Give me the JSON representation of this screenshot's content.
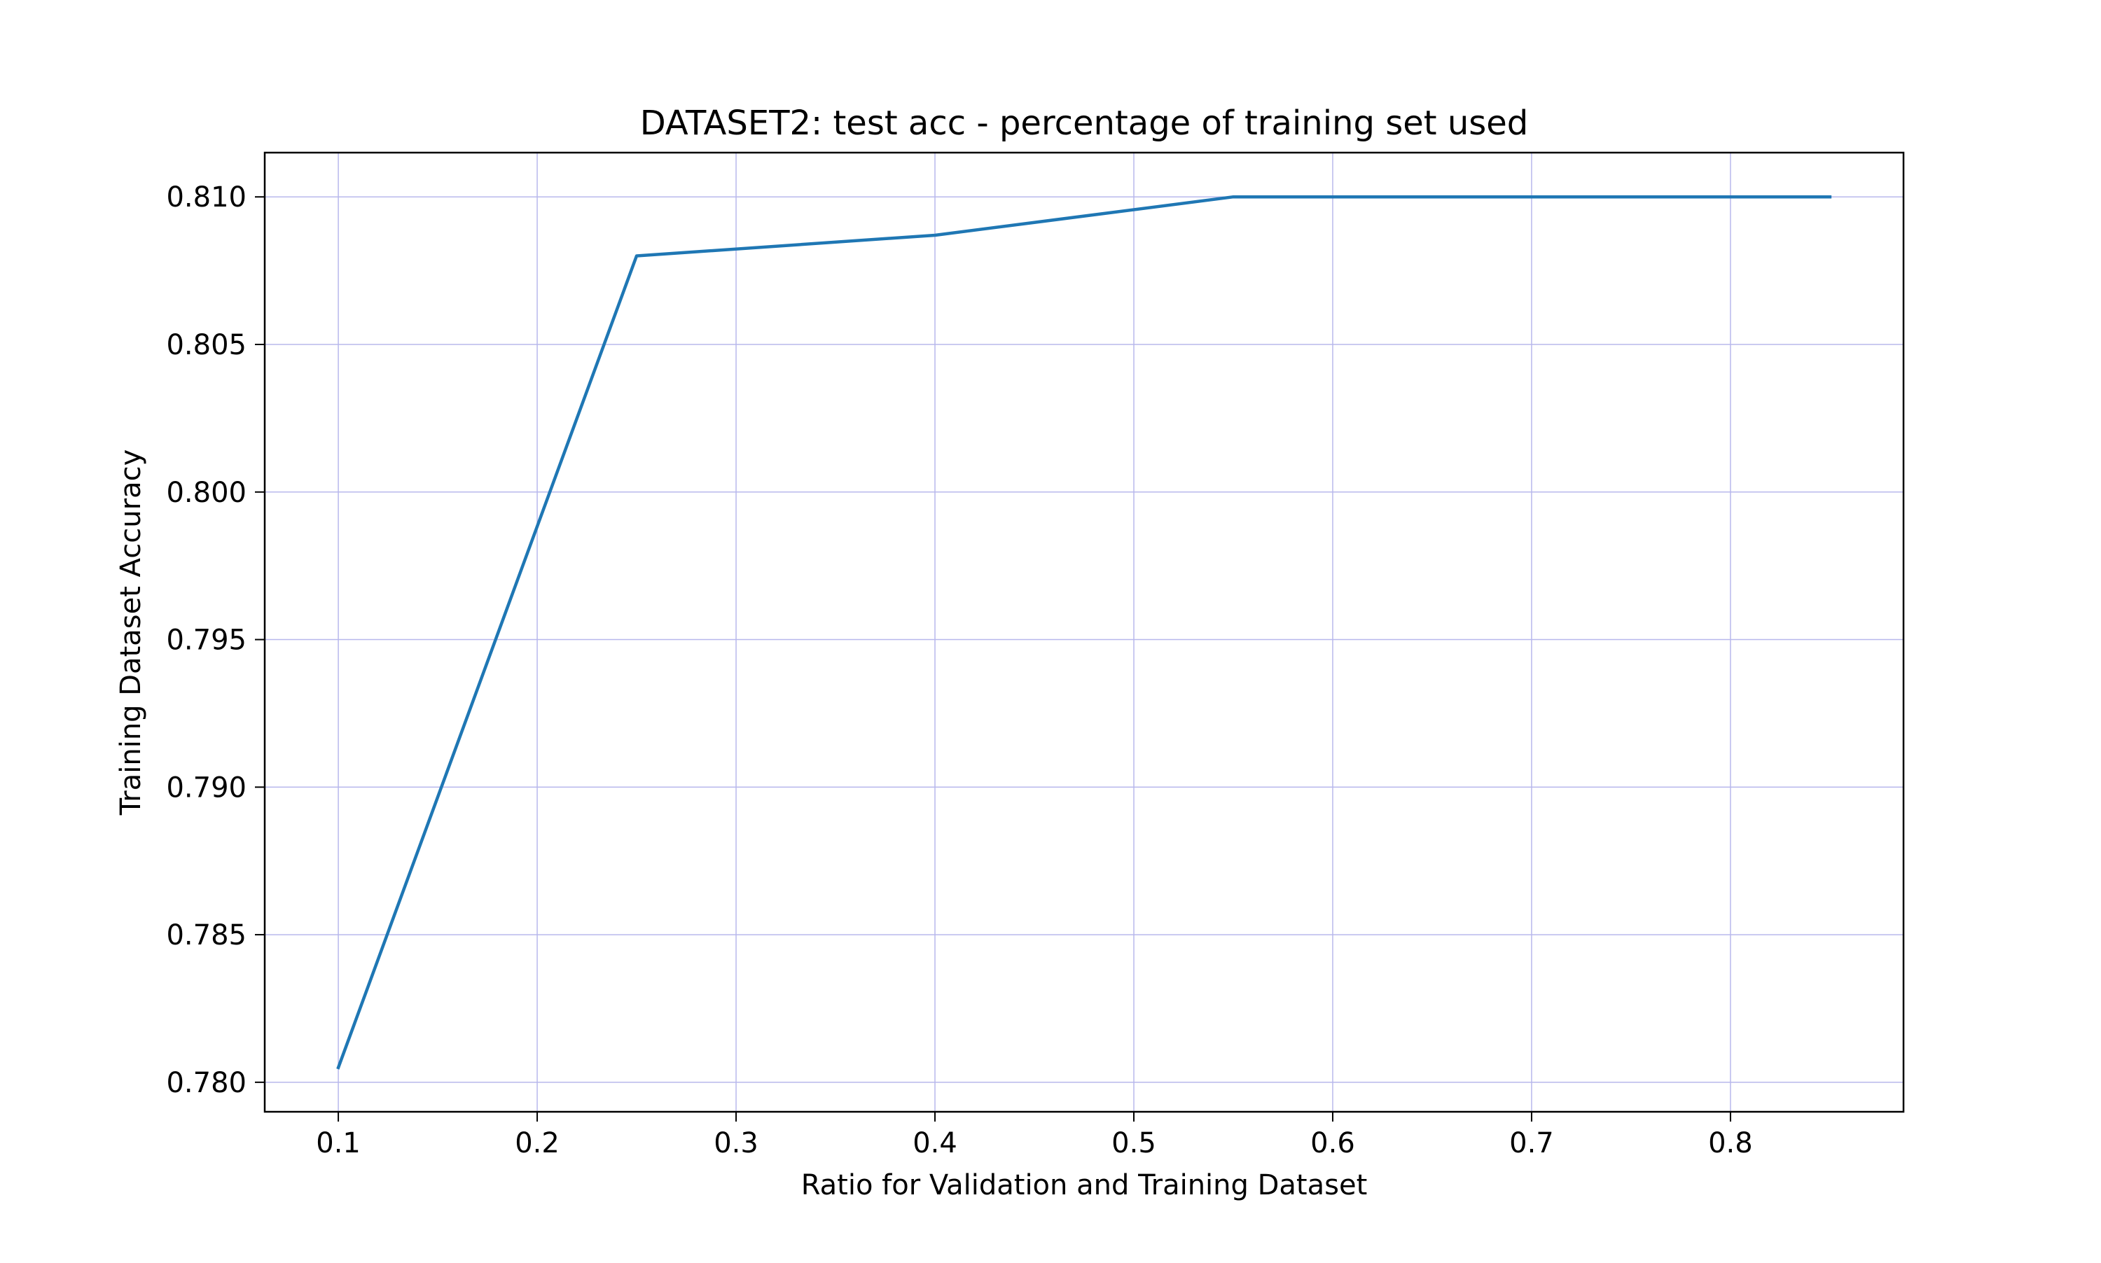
{
  "chart_data": {
    "type": "line",
    "title": "DATASET2: test acc - percentage of training set used",
    "xlabel": "Ratio for Validation and Training Dataset",
    "ylabel": "Training Dataset Accuracy",
    "xlim": [
      0.063,
      0.887
    ],
    "ylim": [
      0.779,
      0.8115
    ],
    "x_ticks": [
      0.1,
      0.2,
      0.3,
      0.4,
      0.5,
      0.6,
      0.7,
      0.8
    ],
    "x_tick_labels": [
      "0.1",
      "0.2",
      "0.3",
      "0.4",
      "0.5",
      "0.6",
      "0.7",
      "0.8"
    ],
    "y_ticks": [
      0.78,
      0.785,
      0.79,
      0.795,
      0.8,
      0.805,
      0.81
    ],
    "y_tick_labels": [
      "0.780",
      "0.785",
      "0.790",
      "0.795",
      "0.800",
      "0.805",
      "0.810"
    ],
    "grid": true,
    "grid_color": "#b8b8ec",
    "series": [
      {
        "color": "#1f77b4",
        "x": [
          0.1,
          0.25,
          0.4,
          0.55,
          0.7,
          0.85
        ],
        "y": [
          0.7805,
          0.808,
          0.8087,
          0.81,
          0.81,
          0.81
        ]
      }
    ]
  }
}
